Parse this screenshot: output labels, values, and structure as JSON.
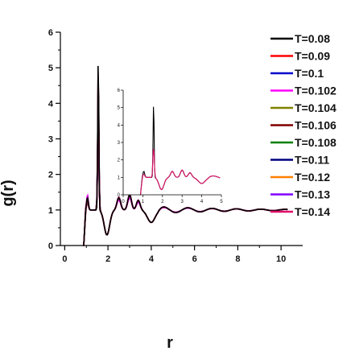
{
  "chart_data": {
    "type": "line",
    "xlabel": "r",
    "ylabel": "g(r)",
    "xlim": [
      -0.2,
      11
    ],
    "ylim": [
      0,
      6
    ],
    "x_ticks": [
      0,
      2,
      4,
      6,
      8,
      10
    ],
    "y_ticks": [
      0,
      1,
      2,
      3,
      4,
      5,
      6
    ],
    "legend_position": "top-right",
    "series": [
      {
        "name": "T=0.08",
        "color": "#000000",
        "first_peak": 5.4,
        "second_peak": 1.5,
        "damping": 0.75
      },
      {
        "name": "T=0.09",
        "color": "#ff0000",
        "first_peak": 5.15,
        "second_peak": 1.48,
        "damping": 0.78
      },
      {
        "name": "T=0.1",
        "color": "#0000cc",
        "first_peak": 4.9,
        "second_peak": 1.46,
        "damping": 0.8
      },
      {
        "name": "T=0.102",
        "color": "#ff00ff",
        "first_peak": 3.7,
        "second_peak": 1.58,
        "damping": 0.62
      },
      {
        "name": "T=0.104",
        "color": "#808000",
        "first_peak": 3.8,
        "second_peak": 1.5,
        "damping": 0.66
      },
      {
        "name": "T=0.106",
        "color": "#800000",
        "first_peak": 4.2,
        "second_peak": 1.45,
        "damping": 0.7
      },
      {
        "name": "T=0.108",
        "color": "#008000",
        "first_peak": 3.65,
        "second_peak": 1.4,
        "damping": 0.7
      },
      {
        "name": "T=0.11",
        "color": "#000080",
        "first_peak": 4.0,
        "second_peak": 1.42,
        "damping": 0.72
      },
      {
        "name": "T=0.12",
        "color": "#ff8000",
        "first_peak": 3.3,
        "second_peak": 1.38,
        "damping": 0.74
      },
      {
        "name": "T=0.13",
        "color": "#8000ff",
        "first_peak": 3.1,
        "second_peak": 1.36,
        "damping": 0.76
      },
      {
        "name": "T=0.14",
        "color": "#e0106a",
        "first_peak": 2.7,
        "second_peak": 1.32,
        "damping": 0.78
      }
    ],
    "inset": {
      "xlim": [
        0,
        5
      ],
      "ylim": [
        0,
        6
      ],
      "x_ticks": [
        0,
        1,
        2,
        3,
        4,
        5
      ],
      "y_ticks": [
        0,
        1,
        2,
        3,
        4,
        5,
        6
      ]
    }
  }
}
